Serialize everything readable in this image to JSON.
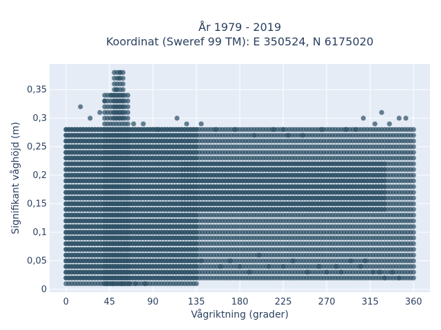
{
  "chart_data": {
    "type": "scatter",
    "title_lines": [
      "År 1979 - 2019",
      "Koordinat (Sweref 99 TM): E 350524, N 6175020"
    ],
    "xlabel": "Vågriktning (grader)",
    "ylabel": "Signifikant våghöjd (m)",
    "xlim": [
      -17,
      377
    ],
    "ylim": [
      -0.005,
      0.395
    ],
    "x_ticks": [
      0,
      45,
      90,
      135,
      180,
      225,
      270,
      315,
      360
    ],
    "x_tick_labels": [
      "0",
      "45",
      "90",
      "135",
      "180",
      "225",
      "270",
      "315",
      "360"
    ],
    "y_ticks": [
      0,
      0.05,
      0.1,
      0.15,
      0.2,
      0.25,
      0.3,
      0.35
    ],
    "y_tick_labels": [
      "0",
      "0,05",
      "0,1",
      "0,15",
      "0,2",
      "0,25",
      "0,3",
      "0,35"
    ],
    "grid": true,
    "marker_color": "#2f5266",
    "background_color": "#e5ecf6",
    "series": [
      {
        "bands": [
          {
            "x": [
              0,
              360
            ],
            "y": [
              0.02,
              0.28
            ]
          },
          {
            "x": [
              0,
              135
            ],
            "y": [
              0.01,
              0.28
            ]
          },
          {
            "x": [
              40,
              65
            ],
            "y": [
              0.01,
              0.34
            ]
          },
          {
            "x": [
              50,
              60
            ],
            "y": [
              0.3,
              0.38
            ]
          },
          {
            "x": [
              120,
              330
            ],
            "y": [
              0.14,
              0.22
            ]
          }
        ],
        "points": [
          [
            15,
            0.32
          ],
          [
            25,
            0.3
          ],
          [
            35,
            0.31
          ],
          [
            40,
            0.33
          ],
          [
            47,
            0.34
          ],
          [
            52,
            0.35
          ],
          [
            55,
            0.37
          ],
          [
            56,
            0.38
          ],
          [
            70,
            0.29
          ],
          [
            80,
            0.29
          ],
          [
            95,
            0.28
          ],
          [
            115,
            0.3
          ],
          [
            125,
            0.29
          ],
          [
            140,
            0.29
          ],
          [
            155,
            0.28
          ],
          [
            175,
            0.28
          ],
          [
            195,
            0.27
          ],
          [
            215,
            0.28
          ],
          [
            225,
            0.28
          ],
          [
            230,
            0.27
          ],
          [
            245,
            0.27
          ],
          [
            265,
            0.28
          ],
          [
            290,
            0.28
          ],
          [
            300,
            0.28
          ],
          [
            308,
            0.3
          ],
          [
            320,
            0.29
          ],
          [
            327,
            0.31
          ],
          [
            335,
            0.29
          ],
          [
            345,
            0.3
          ],
          [
            352,
            0.3
          ],
          [
            42,
            0.01
          ],
          [
            48,
            0.01
          ],
          [
            58,
            0.01
          ],
          [
            66,
            0.01
          ],
          [
            72,
            0.01
          ],
          [
            82,
            0.01
          ],
          [
            140,
            0.05
          ],
          [
            160,
            0.04
          ],
          [
            170,
            0.05
          ],
          [
            180,
            0.04
          ],
          [
            190,
            0.03
          ],
          [
            200,
            0.06
          ],
          [
            210,
            0.04
          ],
          [
            225,
            0.04
          ],
          [
            235,
            0.05
          ],
          [
            250,
            0.03
          ],
          [
            262,
            0.04
          ],
          [
            270,
            0.03
          ],
          [
            280,
            0.04
          ],
          [
            285,
            0.03
          ],
          [
            295,
            0.05
          ],
          [
            305,
            0.04
          ],
          [
            310,
            0.05
          ],
          [
            318,
            0.03
          ],
          [
            325,
            0.03
          ],
          [
            330,
            0.02
          ],
          [
            338,
            0.03
          ],
          [
            345,
            0.02
          ]
        ]
      }
    ]
  }
}
